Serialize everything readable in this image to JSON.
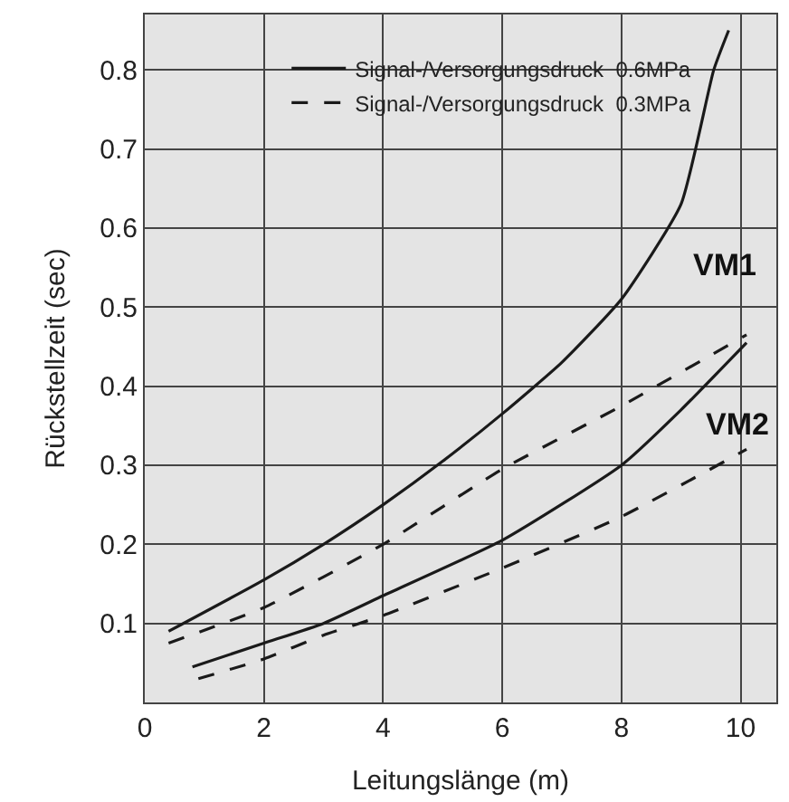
{
  "chart_data": {
    "type": "line",
    "xlabel": "Leitungslänge (m)",
    "ylabel": "Rückstellzeit (sec)",
    "xlim": [
      0,
      10.6
    ],
    "ylim": [
      0,
      0.87
    ],
    "xticks": [
      0,
      2,
      4,
      6,
      8,
      10
    ],
    "yticks": [
      0.1,
      0.2,
      0.3,
      0.4,
      0.5,
      0.6,
      0.7,
      0.8
    ],
    "grid": true,
    "legend": "top right",
    "marker": "none",
    "series": [
      {
        "name": "Signal-/Versorgungsdruck  0.6MPa",
        "color": "#1a1a1a",
        "line_style": "solid",
        "x": [
          0.4,
          2,
          3,
          4,
          5,
          6,
          7,
          8,
          9,
          9.55,
          9.8
        ],
        "values": [
          0.09,
          0.155,
          0.2,
          0.25,
          0.305,
          0.365,
          0.43,
          0.51,
          0.63,
          0.8,
          0.85
        ]
      },
      {
        "name": "Signal-/Versorgungsdruck  0.3MPa",
        "color": "#1a1a1a",
        "line_style": "dashed",
        "x": [
          0.4,
          2,
          4,
          6,
          8,
          10.1
        ],
        "values": [
          0.075,
          0.12,
          0.2,
          0.295,
          0.375,
          0.465
        ]
      },
      {
        "color": "#1a1a1a",
        "line_style": "solid",
        "x": [
          0.8,
          2,
          3,
          4,
          6,
          8,
          9,
          10.1
        ],
        "values": [
          0.045,
          0.075,
          0.1,
          0.135,
          0.205,
          0.3,
          0.37,
          0.455
        ]
      },
      {
        "color": "#1a1a1a",
        "line_style": "dashed",
        "x": [
          0.9,
          2,
          3,
          4,
          6,
          8,
          10.1
        ],
        "values": [
          0.03,
          0.055,
          0.085,
          0.11,
          0.17,
          0.235,
          0.32
        ]
      }
    ],
    "annotations": [
      "VM1",
      "VM2"
    ]
  }
}
